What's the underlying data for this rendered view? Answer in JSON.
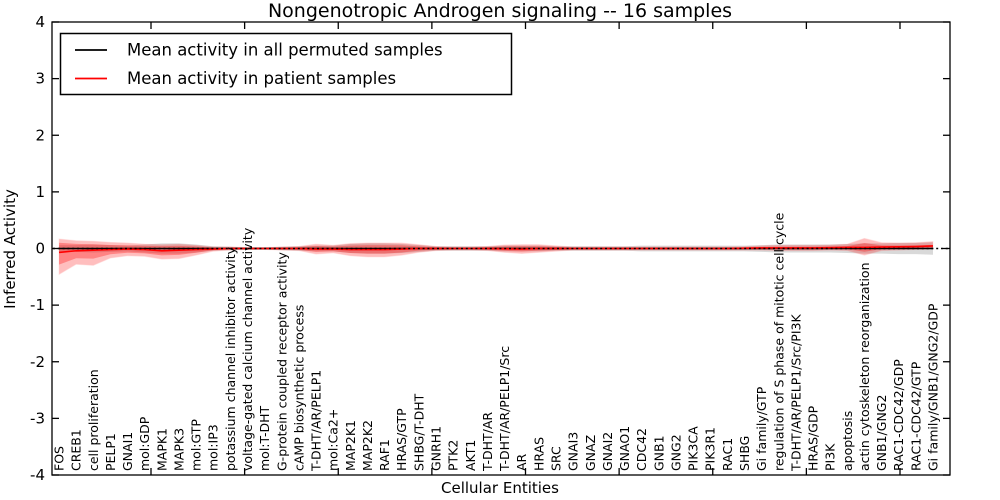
{
  "figure": {
    "title": "Nongenotropic Androgen signaling -- 16 samples",
    "xlabel": "Cellular Entities",
    "ylabel": "Inferred Activity"
  },
  "legend": {
    "items": [
      {
        "label": "Mean activity in all permuted samples",
        "color": "#000000"
      },
      {
        "label": "Mean activity in patient samples",
        "color": "#ff0000"
      }
    ]
  },
  "chart_data": {
    "type": "line",
    "title": "Nongenotropic Androgen signaling -- 16 samples",
    "xlabel": "Cellular Entities",
    "ylabel": "Inferred Activity",
    "ylim": [
      -4,
      4
    ],
    "yticks": [
      4,
      3,
      2,
      1,
      0,
      -1,
      -2,
      -3,
      -4
    ],
    "grid": false,
    "legend_position": "upper left",
    "categories": [
      "FOS",
      "CREB1",
      "cell proliferation",
      "PELP1",
      "GNAI1",
      "mol:GDP",
      "MAPK1",
      "MAPK3",
      "mol:GTP",
      "mol:IP3",
      "potassium channel inhibitor activity",
      "voltage-gated calcium channel activity",
      "mol:T-DHT",
      "G-protein coupled receptor activity",
      "cAMP biosynthetic process",
      "T-DHT/AR/PELP1",
      "mol:Ca2+",
      "MAP2K1",
      "MAP2K2",
      "RAF1",
      "HRAS/GTP",
      "SHBG/T-DHT",
      "GNRH1",
      "PTK2",
      "AKT1",
      "T-DHT/AR",
      "T-DHT/AR/PELP1/Src",
      "AR",
      "HRAS",
      "SRC",
      "GNAI3",
      "GNAZ",
      "GNAI2",
      "GNAO1",
      "CDC42",
      "GNB1",
      "GNG2",
      "PIK3CA",
      "PIK3R1",
      "RAC1",
      "SHBG",
      "Gi family/GTP",
      "regulation of S phase of mitotic cell cycle",
      "T-DHT/AR/PELP1/Src/PI3K",
      "HRAS/GDP",
      "PI3K",
      "apoptosis",
      "actin cytoskeleton reorganization",
      "GNB1/GNG2",
      "RAC1-CDC42/GDP",
      "RAC1-CDC42/GTP",
      "Gi family/GNB1/GNG2/GDP"
    ],
    "series": [
      {
        "name": "Mean activity in all permuted samples",
        "color": "#000000",
        "band_color": "#aaaaaa",
        "values": [
          0,
          0,
          0,
          0,
          0,
          0,
          0,
          0,
          0,
          0,
          0,
          0,
          0,
          0,
          0,
          0,
          0,
          0,
          0,
          0,
          0,
          0,
          0,
          0,
          0,
          0,
          0,
          0,
          0,
          0,
          0,
          0,
          0,
          0,
          0,
          0,
          0,
          0,
          0,
          0,
          0,
          0,
          0,
          0,
          0,
          0,
          0,
          0,
          0,
          0,
          0,
          0
        ],
        "band_halfwidth": [
          0.06,
          0.06,
          0.07,
          0.06,
          0.05,
          0.07,
          0.09,
          0.09,
          0.07,
          0.04,
          0.03,
          0.02,
          0.02,
          0.03,
          0.04,
          0.05,
          0.05,
          0.08,
          0.09,
          0.09,
          0.08,
          0.06,
          0.04,
          0.04,
          0.04,
          0.04,
          0.05,
          0.05,
          0.05,
          0.04,
          0.04,
          0.04,
          0.04,
          0.04,
          0.05,
          0.05,
          0.05,
          0.05,
          0.05,
          0.05,
          0.05,
          0.06,
          0.07,
          0.07,
          0.07,
          0.07,
          0.08,
          0.09,
          0.09,
          0.1,
          0.1,
          0.11
        ]
      },
      {
        "name": "Mean activity in patient samples",
        "color": "#ff0000",
        "band_color": "#ff0000",
        "values": [
          -0.07,
          -0.04,
          -0.03,
          -0.02,
          -0.01,
          -0.02,
          -0.04,
          -0.03,
          -0.02,
          -0.01,
          0,
          0,
          0,
          0,
          0,
          -0.01,
          -0.01,
          -0.02,
          -0.02,
          -0.02,
          -0.01,
          0,
          0,
          0,
          0,
          0,
          -0.005,
          -0.01,
          0,
          0,
          0,
          0,
          0,
          0,
          0,
          0,
          0,
          0,
          0,
          0,
          0.005,
          0.01,
          0.01,
          0.01,
          0.01,
          0.015,
          0.02,
          0.02,
          0.025,
          0.03,
          0.035,
          0.045
        ],
        "band_upper": [
          0.24,
          0.18,
          0.16,
          0.13,
          0.11,
          0.1,
          0.11,
          0.11,
          0.08,
          0.04,
          0.03,
          0.02,
          0.02,
          0.03,
          0.04,
          0.09,
          0.07,
          0.11,
          0.12,
          0.12,
          0.11,
          0.07,
          0.04,
          0.03,
          0.03,
          0.04,
          0.07,
          0.08,
          0.07,
          0.05,
          0.03,
          0.03,
          0.03,
          0.03,
          0.03,
          0.03,
          0.03,
          0.03,
          0.03,
          0.03,
          0.03,
          0.04,
          0.05,
          0.05,
          0.05,
          0.05,
          0.06,
          0.16,
          0.08,
          0.07,
          0.07,
          0.08
        ],
        "band_lower": [
          -0.46,
          -0.28,
          -0.3,
          -0.17,
          -0.13,
          -0.14,
          -0.19,
          -0.18,
          -0.12,
          -0.05,
          -0.03,
          -0.02,
          -0.02,
          -0.03,
          -0.04,
          -0.1,
          -0.08,
          -0.13,
          -0.15,
          -0.15,
          -0.12,
          -0.07,
          -0.04,
          -0.03,
          -0.03,
          -0.04,
          -0.07,
          -0.09,
          -0.07,
          -0.05,
          -0.03,
          -0.03,
          -0.03,
          -0.03,
          -0.03,
          -0.03,
          -0.03,
          -0.03,
          -0.03,
          -0.03,
          -0.03,
          -0.03,
          -0.04,
          -0.04,
          -0.04,
          -0.03,
          -0.04,
          -0.12,
          -0.04,
          -0.03,
          -0.02,
          -0.01
        ]
      }
    ],
    "zero_line": {
      "y": 0,
      "style": "dashed",
      "color": "#000000"
    }
  }
}
